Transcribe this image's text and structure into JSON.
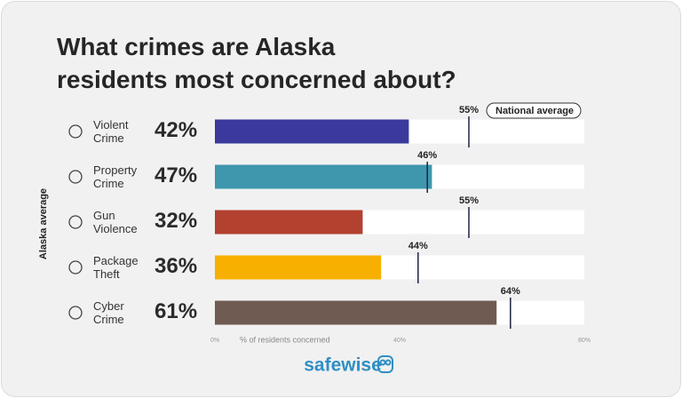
{
  "chart_data": {
    "type": "bar",
    "orientation": "horizontal",
    "title": "What crimes are Alaska\nresidents most concerned about?",
    "categories": [
      "Violent\nCrime",
      "Property\nCrime",
      "Gun\nViolence",
      "Package\nTheft",
      "Cyber\nCrime"
    ],
    "series": [
      {
        "name": "Alaska average",
        "colors": [
          "#3b3a9c",
          "#3e97ad",
          "#b3412f",
          "#f7b000",
          "#6f5b52"
        ],
        "values": [
          42,
          47,
          32,
          36,
          61
        ],
        "value_labels": [
          "42%",
          "47%",
          "32%",
          "36%",
          "61%"
        ]
      },
      {
        "name": "National average",
        "color": "#1d2440",
        "values": [
          55,
          46,
          55,
          44,
          64
        ],
        "value_labels": [
          "55%",
          "46%",
          "55%",
          "44%",
          "64%"
        ]
      }
    ],
    "xlabel": "% of residents concerned",
    "xlim": [
      0,
      80
    ],
    "xticks": [
      {
        "value": 0,
        "label": "0%"
      },
      {
        "value": 40,
        "label": "40%"
      },
      {
        "value": 80,
        "label": "80%"
      }
    ],
    "brand": "safewise"
  }
}
